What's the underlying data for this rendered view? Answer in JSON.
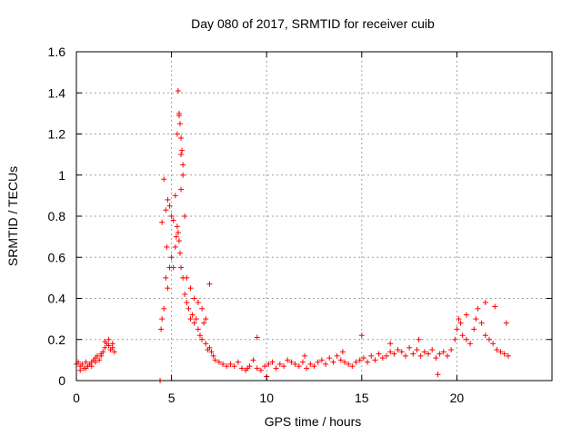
{
  "chart_data": {
    "type": "scatter",
    "title": "Day 080 of 2017, SRMTID for receiver cuib",
    "xlabel": "GPS time / hours",
    "ylabel": "SRMTID / TECUs",
    "xlim": [
      0,
      25
    ],
    "ylim": [
      0,
      1.6
    ],
    "xticks": [
      0,
      5,
      10,
      15,
      20
    ],
    "yticks": [
      0,
      0.2,
      0.4,
      0.6,
      0.8,
      1.0,
      1.2,
      1.4,
      1.6
    ],
    "xtick_labels": [
      "0",
      "5",
      "10",
      "15",
      "20"
    ],
    "ytick_labels": [
      "0",
      "0.2",
      "0.4",
      "0.6",
      "0.8",
      "1",
      "1.2",
      "1.4",
      "1.6"
    ],
    "grid": true,
    "marker": "+",
    "color": "#ff0000",
    "series": [
      {
        "name": "SRMTID",
        "x": [
          0.0,
          0.1,
          0.2,
          0.3,
          0.4,
          0.5,
          0.6,
          0.7,
          0.8,
          0.9,
          1.0,
          1.1,
          1.2,
          1.3,
          1.4,
          1.5,
          1.6,
          1.7,
          1.8,
          1.9,
          2.0,
          4.4,
          4.45,
          4.5,
          4.6,
          4.7,
          4.8,
          4.9,
          5.0,
          5.1,
          5.2,
          5.25,
          5.3,
          5.35,
          5.4,
          5.45,
          5.5,
          5.6,
          5.7,
          5.8,
          5.9,
          6.0,
          6.1,
          6.2,
          6.3,
          6.4,
          6.5,
          6.6,
          6.7,
          6.8,
          6.9,
          7.0,
          7.1,
          7.2,
          7.3,
          7.5,
          7.7,
          7.9,
          8.1,
          8.3,
          8.5,
          8.7,
          8.9,
          9.1,
          9.3,
          9.5,
          9.7,
          9.9,
          10.1,
          10.3,
          10.5,
          10.7,
          10.9,
          11.1,
          11.3,
          11.5,
          11.7,
          11.9,
          12.1,
          12.3,
          12.5,
          12.7,
          12.9,
          13.1,
          13.3,
          13.5,
          13.7,
          13.9,
          14.1,
          14.3,
          14.5,
          14.7,
          14.9,
          15.1,
          15.3,
          15.5,
          15.7,
          15.9,
          16.1,
          16.3,
          16.5,
          16.7,
          16.9,
          17.1,
          17.3,
          17.5,
          17.7,
          17.9,
          18.1,
          18.3,
          18.5,
          18.7,
          18.9,
          19.1,
          19.3,
          19.5,
          19.7,
          19.9,
          20.0,
          20.1,
          20.2,
          20.3,
          20.5,
          20.7,
          20.9,
          21.0,
          21.1,
          21.3,
          21.5,
          21.7,
          21.9,
          22.1,
          22.3,
          22.5,
          22.7,
          4.6,
          4.8,
          4.9,
          5.0,
          5.1,
          5.2,
          5.3,
          5.4,
          5.5,
          5.6,
          5.7,
          5.8,
          6.0,
          6.2,
          6.4,
          6.6,
          6.8,
          7.0,
          5.35,
          5.4,
          5.45,
          5.5,
          5.55,
          4.5,
          4.7,
          4.75,
          5.5,
          5.6,
          0.2,
          0.5,
          0.8,
          1.0,
          1.3,
          1.5,
          1.7,
          1.9,
          9.0,
          9.5,
          10.0,
          12.0,
          14.0,
          15.0,
          16.5,
          18.0,
          19.0,
          20.5,
          21.5,
          22.0,
          22.6
        ],
        "y": [
          0.08,
          0.09,
          0.07,
          0.08,
          0.06,
          0.09,
          0.07,
          0.08,
          0.09,
          0.1,
          0.11,
          0.12,
          0.1,
          0.13,
          0.14,
          0.16,
          0.18,
          0.17,
          0.15,
          0.16,
          0.14,
          0.0,
          0.25,
          0.3,
          0.35,
          0.5,
          0.45,
          0.55,
          0.6,
          0.55,
          0.65,
          0.7,
          0.75,
          0.72,
          0.68,
          0.62,
          0.55,
          0.5,
          0.42,
          0.38,
          0.35,
          0.3,
          0.32,
          0.28,
          0.3,
          0.25,
          0.22,
          0.2,
          0.28,
          0.18,
          0.15,
          0.16,
          0.14,
          0.12,
          0.1,
          0.09,
          0.08,
          0.07,
          0.08,
          0.07,
          0.09,
          0.06,
          0.05,
          0.07,
          0.1,
          0.06,
          0.05,
          0.07,
          0.08,
          0.09,
          0.06,
          0.08,
          0.07,
          0.1,
          0.09,
          0.08,
          0.07,
          0.09,
          0.06,
          0.08,
          0.07,
          0.09,
          0.1,
          0.08,
          0.11,
          0.09,
          0.12,
          0.1,
          0.09,
          0.08,
          0.07,
          0.09,
          0.1,
          0.11,
          0.09,
          0.12,
          0.1,
          0.13,
          0.11,
          0.12,
          0.14,
          0.13,
          0.15,
          0.14,
          0.12,
          0.16,
          0.13,
          0.15,
          0.12,
          0.14,
          0.13,
          0.15,
          0.11,
          0.13,
          0.14,
          0.12,
          0.15,
          0.2,
          0.25,
          0.3,
          0.28,
          0.22,
          0.2,
          0.18,
          0.25,
          0.3,
          0.35,
          0.28,
          0.22,
          0.2,
          0.18,
          0.15,
          0.14,
          0.13,
          0.12,
          0.98,
          0.88,
          0.85,
          0.8,
          0.78,
          0.9,
          1.2,
          1.3,
          1.1,
          1.05,
          0.8,
          0.5,
          0.45,
          0.4,
          0.38,
          0.35,
          0.3,
          0.47,
          1.41,
          1.29,
          1.25,
          1.18,
          1.12,
          0.77,
          0.83,
          0.65,
          0.93,
          1.0,
          0.05,
          0.06,
          0.07,
          0.09,
          0.12,
          0.19,
          0.2,
          0.18,
          0.06,
          0.21,
          0.02,
          0.12,
          0.14,
          0.22,
          0.18,
          0.2,
          0.03,
          0.32,
          0.38,
          0.36,
          0.28
        ]
      }
    ]
  }
}
